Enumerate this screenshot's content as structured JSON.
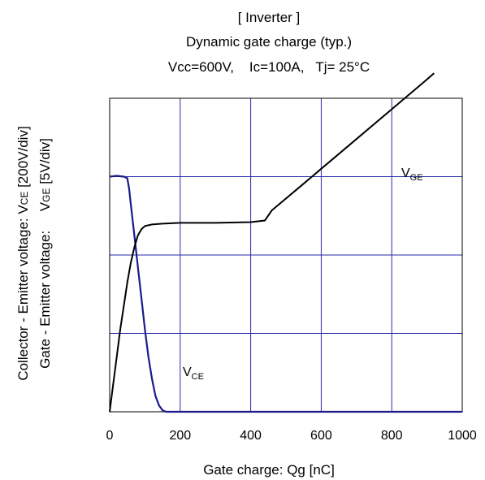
{
  "chart_data": {
    "type": "line",
    "title_lines": [
      "[ Inverter ]",
      "Dynamic gate charge  (typ.)",
      "Vcc=600V,    Ic=100A,   Tj= 25°C"
    ],
    "xlabel": "Gate charge: Qg [nC]",
    "ylabel_ce": {
      "prefix": "Collector - Emitter voltage: V",
      "sub": "CE",
      "suffix": " [200V/div]"
    },
    "ylabel_ge": {
      "prefix": "Gate - Emitter voltage:     V",
      "sub": "GE",
      "suffix": " [5V/div]"
    },
    "xlim": [
      0,
      1000
    ],
    "x_ticks": [
      "0",
      "200",
      "400",
      "600",
      "800",
      "1000"
    ],
    "ylim_div": [
      0,
      4
    ],
    "grid": true,
    "series": [
      {
        "name": "VGE",
        "label": {
          "main": "V",
          "sub": "GE"
        },
        "color": "#000000",
        "points": [
          [
            0,
            0
          ],
          [
            10,
            0.35
          ],
          [
            20,
            0.7
          ],
          [
            30,
            1.05
          ],
          [
            40,
            1.35
          ],
          [
            50,
            1.65
          ],
          [
            60,
            1.9
          ],
          [
            70,
            2.1
          ],
          [
            80,
            2.25
          ],
          [
            90,
            2.33
          ],
          [
            100,
            2.37
          ],
          [
            120,
            2.39
          ],
          [
            150,
            2.4
          ],
          [
            200,
            2.41
          ],
          [
            300,
            2.41
          ],
          [
            400,
            2.42
          ],
          [
            440,
            2.44
          ],
          [
            460,
            2.57
          ],
          [
            550,
            2.91
          ],
          [
            600,
            3.1
          ],
          [
            700,
            3.48
          ],
          [
            800,
            3.86
          ],
          [
            900,
            4.24
          ],
          [
            920,
            4.32
          ]
        ]
      },
      {
        "name": "VCE",
        "label": {
          "main": "V",
          "sub": "CE"
        },
        "color": "#1a1a8c",
        "points": [
          [
            0,
            3.0
          ],
          [
            20,
            3.01
          ],
          [
            40,
            3.0
          ],
          [
            50,
            2.98
          ],
          [
            55,
            2.85
          ],
          [
            60,
            2.65
          ],
          [
            70,
            2.25
          ],
          [
            80,
            1.85
          ],
          [
            90,
            1.45
          ],
          [
            100,
            1.05
          ],
          [
            110,
            0.7
          ],
          [
            120,
            0.42
          ],
          [
            130,
            0.2
          ],
          [
            140,
            0.08
          ],
          [
            150,
            0.02
          ],
          [
            160,
            0.0
          ],
          [
            200,
            0.0
          ],
          [
            400,
            0.0
          ],
          [
            600,
            0.0
          ],
          [
            800,
            0.0
          ],
          [
            1000,
            0.0
          ]
        ]
      }
    ]
  }
}
